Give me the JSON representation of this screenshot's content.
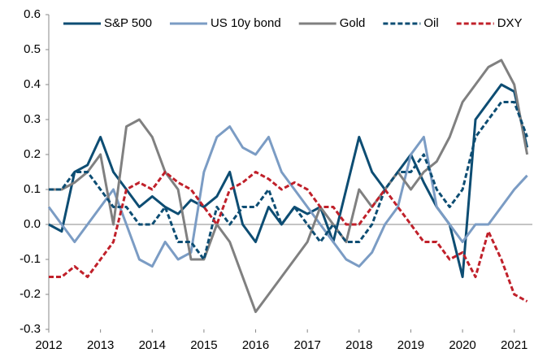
{
  "chart_data": {
    "type": "line",
    "x": [
      2012,
      2012.25,
      2012.5,
      2012.75,
      2013,
      2013.25,
      2013.5,
      2013.75,
      2014,
      2014.25,
      2014.5,
      2014.75,
      2015,
      2015.25,
      2015.5,
      2015.75,
      2016,
      2016.25,
      2016.5,
      2016.75,
      2017,
      2017.25,
      2017.5,
      2017.75,
      2018,
      2018.25,
      2018.5,
      2018.75,
      2019,
      2019.25,
      2019.5,
      2019.75,
      2020,
      2020.25,
      2020.5,
      2020.75,
      2021,
      2021.25
    ],
    "series": [
      {
        "name": "S&P 500",
        "color": "#0d4d73",
        "style": "solid",
        "values": [
          0.0,
          -0.02,
          0.15,
          0.17,
          0.25,
          0.15,
          0.1,
          0.05,
          0.08,
          0.05,
          0.03,
          0.07,
          0.05,
          0.08,
          0.15,
          0.0,
          -0.05,
          0.05,
          0.0,
          0.05,
          0.03,
          0.05,
          -0.05,
          0.1,
          0.25,
          0.15,
          0.1,
          0.15,
          0.2,
          0.12,
          0.05,
          0.0,
          -0.15,
          0.3,
          0.35,
          0.4,
          0.38,
          0.22
        ]
      },
      {
        "name": "US 10y bond",
        "color": "#7b9cc4",
        "style": "solid",
        "values": [
          0.05,
          0.0,
          -0.05,
          0.0,
          0.05,
          0.1,
          0.0,
          -0.1,
          -0.12,
          -0.05,
          -0.1,
          -0.08,
          0.15,
          0.25,
          0.28,
          0.22,
          0.2,
          0.25,
          0.15,
          0.1,
          0.05,
          0.0,
          -0.05,
          -0.1,
          -0.12,
          -0.08,
          0.0,
          0.05,
          0.2,
          0.25,
          0.05,
          0.0,
          -0.05,
          0.0,
          0.0,
          0.05,
          0.1,
          0.14
        ]
      },
      {
        "name": "Gold",
        "color": "#808080",
        "style": "solid",
        "values": [
          0.1,
          0.1,
          0.12,
          0.15,
          0.2,
          0.0,
          0.28,
          0.3,
          0.25,
          0.15,
          0.1,
          -0.1,
          -0.1,
          0.0,
          -0.05,
          -0.15,
          -0.25,
          -0.2,
          -0.15,
          -0.1,
          -0.05,
          0.05,
          0.0,
          -0.05,
          0.1,
          0.05,
          0.1,
          0.15,
          0.1,
          0.15,
          0.18,
          0.25,
          0.35,
          0.4,
          0.45,
          0.47,
          0.4,
          0.2
        ]
      },
      {
        "name": "Oil",
        "color": "#0d4d73",
        "style": "dashed",
        "values": [
          0.1,
          0.1,
          0.15,
          0.15,
          0.1,
          0.05,
          0.05,
          0.0,
          0.0,
          0.05,
          -0.05,
          -0.05,
          -0.1,
          0.05,
          0.0,
          0.05,
          0.05,
          0.1,
          0.0,
          0.05,
          0.0,
          -0.05,
          0.0,
          -0.05,
          -0.05,
          0.0,
          0.1,
          0.15,
          0.15,
          0.2,
          0.1,
          0.05,
          0.1,
          0.25,
          0.3,
          0.35,
          0.35,
          0.25
        ]
      },
      {
        "name": "DXY",
        "color": "#c0202a",
        "style": "dashed",
        "values": [
          -0.15,
          -0.15,
          -0.12,
          -0.15,
          -0.1,
          -0.05,
          0.1,
          0.12,
          0.1,
          0.15,
          0.12,
          0.1,
          0.05,
          0.0,
          0.1,
          0.12,
          0.15,
          0.13,
          0.1,
          0.12,
          0.1,
          0.05,
          0.05,
          0.0,
          0.0,
          0.05,
          0.1,
          0.05,
          0.0,
          -0.05,
          -0.05,
          -0.1,
          -0.08,
          -0.15,
          -0.02,
          -0.1,
          -0.2,
          -0.22
        ]
      }
    ],
    "xlim": [
      2012,
      2021.35
    ],
    "xticks": [
      2012,
      2013,
      2014,
      2015,
      2016,
      2017,
      2018,
      2019,
      2020,
      2021
    ],
    "ylim": [
      -0.3,
      0.6
    ],
    "yticks": [
      -0.3,
      -0.2,
      -0.1,
      {
        "value": 0,
        "label": "0.0"
      },
      0.1,
      0.2,
      0.3,
      0.4,
      0.5,
      0.6
    ],
    "legend": "top"
  }
}
